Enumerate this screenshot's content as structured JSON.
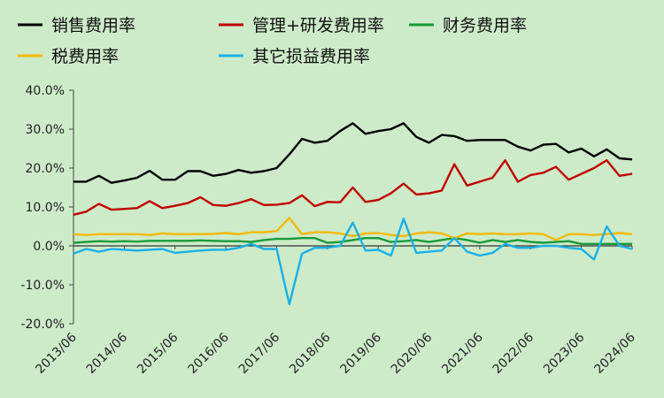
{
  "chart_data": {
    "type": "line",
    "title": "",
    "xlabel": "",
    "ylabel": "",
    "ylim": [
      -20,
      40
    ],
    "y_ticks": [
      "40.0%",
      "30.0%",
      "20.0%",
      "10.0%",
      "0.0%",
      "-10.0%",
      "-20.0%"
    ],
    "y_tick_values": [
      40,
      30,
      20,
      10,
      0,
      -10,
      -20
    ],
    "x_tick_labels": [
      "2013/06",
      "2014/06",
      "2015/06",
      "2016/06",
      "2017/06",
      "2018/06",
      "2019/06",
      "2020/06",
      "2021/06",
      "2022/06",
      "2023/06",
      "2024/06"
    ],
    "x_tick_index": [
      0,
      4,
      8,
      12,
      16,
      20,
      24,
      28,
      32,
      36,
      40,
      44
    ],
    "legend_position": "top",
    "x": [
      "2013/06",
      "2013/09",
      "2013/12",
      "2014/03",
      "2014/06",
      "2014/09",
      "2014/12",
      "2015/03",
      "2015/06",
      "2015/09",
      "2015/12",
      "2016/03",
      "2016/06",
      "2016/09",
      "2016/12",
      "2017/03",
      "2017/06",
      "2017/09",
      "2017/12",
      "2018/03",
      "2018/06",
      "2018/09",
      "2018/12",
      "2019/03",
      "2019/06",
      "2019/09",
      "2019/12",
      "2020/03",
      "2020/06",
      "2020/09",
      "2020/12",
      "2021/03",
      "2021/06",
      "2021/09",
      "2021/12",
      "2022/03",
      "2022/06",
      "2022/09",
      "2022/12",
      "2023/03",
      "2023/06",
      "2023/09",
      "2023/12",
      "2024/03",
      "2024/06"
    ],
    "series": [
      {
        "name": "销售费用率",
        "color": "#000000",
        "values": [
          16.5,
          16.5,
          18,
          16.2,
          16.8,
          17.5,
          19.3,
          17,
          17,
          19.2,
          19.2,
          18,
          18.5,
          19.5,
          18.8,
          19.2,
          20,
          23.5,
          27.5,
          26.5,
          27,
          29.5,
          31.5,
          28.8,
          29.5,
          30,
          31.5,
          28,
          26.5,
          28.5,
          28.2,
          27,
          27.2,
          27.2,
          27.2,
          25.5,
          24.5,
          26,
          26.2,
          24,
          25,
          23,
          24.8,
          22.5,
          22.2
        ]
      },
      {
        "name": "管理+研发费用率",
        "color": "#c00000",
        "values": [
          8,
          8.8,
          10.8,
          9.3,
          9.5,
          9.7,
          11.5,
          9.7,
          10.3,
          11,
          12.5,
          10.5,
          10.3,
          11,
          12,
          10.5,
          10.6,
          11,
          13,
          10.2,
          11.3,
          11.2,
          15,
          11.3,
          11.8,
          13.5,
          16,
          13.2,
          13.5,
          14.2,
          21,
          15.5,
          16.5,
          17.5,
          22,
          16.5,
          18.2,
          18.8,
          20.3,
          17,
          18.5,
          20,
          22,
          18,
          18.5
        ]
      },
      {
        "name": "财务费用率",
        "color": "#1a9a3a",
        "values": [
          0.8,
          1,
          1.2,
          1.1,
          1.2,
          1.1,
          1.3,
          1.3,
          1.3,
          1.3,
          1.4,
          1.3,
          1.2,
          1.2,
          1,
          1.5,
          1.8,
          1.8,
          2,
          2,
          0.8,
          1,
          1.5,
          2,
          2,
          1,
          1.2,
          1.5,
          1,
          1.5,
          2,
          1.5,
          0.8,
          1.5,
          1,
          1.5,
          1,
          0.8,
          1,
          1.2,
          0.5,
          0.5,
          0.5,
          0.5,
          0.5
        ]
      },
      {
        "name": "税费用率",
        "color": "#f5b800",
        "values": [
          3,
          2.8,
          3,
          3,
          3,
          3,
          2.8,
          3.2,
          3,
          3,
          3,
          3.1,
          3.3,
          3,
          3.5,
          3.5,
          3.8,
          7.2,
          3,
          3.5,
          3.5,
          3.2,
          2.5,
          3.2,
          3.3,
          2.8,
          2.5,
          3.2,
          3.5,
          3.2,
          2,
          3.2,
          3,
          3.2,
          3,
          3,
          3.2,
          3,
          1.5,
          3,
          3,
          2.8,
          3,
          3.3,
          3
        ]
      },
      {
        "name": "其它损益费用率",
        "color": "#1ab0e8",
        "values": [
          -2,
          -0.8,
          -1.5,
          -0.8,
          -1,
          -1.2,
          -1,
          -0.8,
          -1.8,
          -1.5,
          -1.2,
          -1,
          -1,
          -0.5,
          0.5,
          -0.8,
          -0.8,
          -15,
          -2,
          -0.5,
          -0.5,
          0,
          6,
          -1.2,
          -1,
          -2.5,
          7,
          -1.8,
          -1.5,
          -1.2,
          2,
          -1.5,
          -2.5,
          -1.8,
          0.5,
          -0.5,
          -0.5,
          0,
          0,
          -0.5,
          -0.8,
          -3.5,
          5,
          0,
          -0.8
        ]
      }
    ]
  }
}
